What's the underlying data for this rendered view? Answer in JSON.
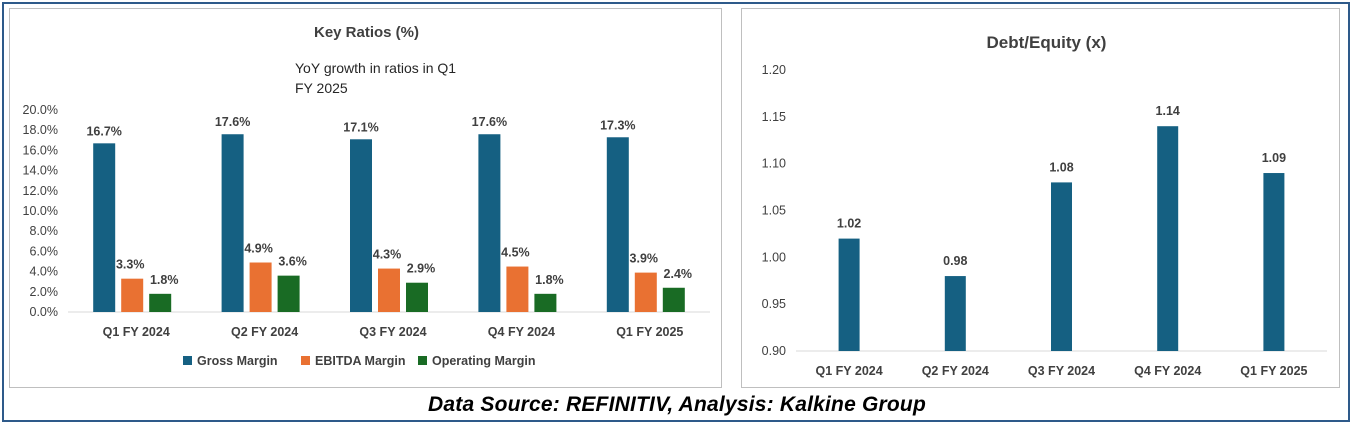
{
  "chart_data": [
    {
      "type": "bar",
      "title": "Key Ratios (%)",
      "subtitle": [
        "YoY growth in ratios in Q1",
        "FY 2025"
      ],
      "categories": [
        "Q1 FY 2024",
        "Q2 FY 2024",
        "Q3 FY 2024",
        "Q4 FY 2024",
        "Q1 FY 2025"
      ],
      "series": [
        {
          "name": "Gross Margin",
          "values": [
            16.7,
            17.6,
            17.1,
            17.6,
            17.3
          ],
          "labels": [
            "16.7%",
            "17.6%",
            "17.1%",
            "17.6%",
            "17.3%"
          ],
          "color": "#156082"
        },
        {
          "name": "EBITDA Margin",
          "values": [
            3.3,
            4.9,
            4.3,
            4.5,
            3.9
          ],
          "labels": [
            "3.3%",
            "4.9%",
            "4.3%",
            "4.5%",
            "3.9%"
          ],
          "color": "#e97132"
        },
        {
          "name": "Operating Margin",
          "values": [
            1.8,
            3.6,
            2.9,
            1.8,
            2.4
          ],
          "labels": [
            "1.8%",
            "3.6%",
            "2.9%",
            "1.8%",
            "2.4%"
          ],
          "color": "#196b24"
        }
      ],
      "ylim": [
        0,
        20
      ],
      "yticks": [
        "0.0%",
        "2.0%",
        "4.0%",
        "6.0%",
        "8.0%",
        "10.0%",
        "12.0%",
        "14.0%",
        "16.0%",
        "18.0%",
        "20.0%"
      ],
      "xlabel": "",
      "ylabel": "",
      "legend": "bottom",
      "grid": false
    },
    {
      "type": "bar",
      "title": "Debt/Equity (x)",
      "categories": [
        "Q1 FY 2024",
        "Q2 FY 2024",
        "Q3 FY 2024",
        "Q4 FY 2024",
        "Q1 FY 2025"
      ],
      "series": [
        {
          "name": "Debt/Equity",
          "values": [
            1.02,
            0.98,
            1.08,
            1.14,
            1.09
          ],
          "labels": [
            "1.02",
            "0.98",
            "1.08",
            "1.14",
            "1.09"
          ],
          "color": "#156082"
        }
      ],
      "ylim": [
        0.9,
        1.2
      ],
      "yticks": [
        "0.90",
        "0.95",
        "1.00",
        "1.05",
        "1.10",
        "1.15",
        "1.20"
      ],
      "xlabel": "",
      "ylabel": "",
      "grid": false
    }
  ],
  "footer": {
    "source": "Data Source: REFINITIV, Analysis: Kalkine Group"
  }
}
